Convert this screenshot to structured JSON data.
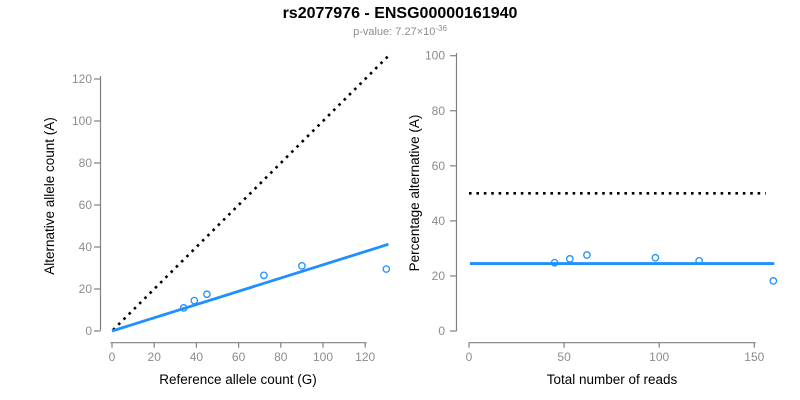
{
  "header": {
    "title": "rs2077976 - ENSG00000161940",
    "subtitle_prefix": "p-value: 7.27×10",
    "subtitle_exponent": "-36"
  },
  "colors": {
    "accent_blue": "#1E90FF",
    "line_black": "#000000",
    "axis_gray": "#808080",
    "tick_label_gray": "#8C8C8C",
    "subtitle_gray": "#8D8D8D",
    "title_black": "#000000"
  },
  "chart_data": [
    {
      "type": "scatter",
      "xlabel": "Reference allele count (G)",
      "ylabel": "Alternative allele count (A)",
      "xlim": [
        0,
        130
      ],
      "ylim": [
        0,
        133
      ],
      "xticks": [
        0,
        20,
        40,
        60,
        80,
        100,
        120
      ],
      "yticks": [
        0,
        20,
        40,
        60,
        80,
        100,
        120
      ],
      "points": [
        [
          34,
          11
        ],
        [
          39,
          14.5
        ],
        [
          45,
          17.5
        ],
        [
          72,
          26.5
        ],
        [
          90,
          31
        ],
        [
          130,
          29.5
        ]
      ],
      "lines": [
        {
          "name": "identity-line",
          "style": "dotted",
          "color": "black",
          "from": [
            0.5,
            0.5
          ],
          "to": [
            132,
            132
          ]
        },
        {
          "name": "fit-line",
          "style": "solid",
          "color": "blue",
          "from": [
            0,
            0
          ],
          "to": [
            131,
            41.3
          ]
        }
      ],
      "grid": false,
      "legend": null
    },
    {
      "type": "scatter",
      "xlabel": "Total number of reads",
      "ylabel": "Percentage alternative (A)",
      "xlim": [
        0,
        160
      ],
      "ylim": [
        0,
        100
      ],
      "xticks": [
        0,
        50,
        100,
        150
      ],
      "yticks": [
        0,
        20,
        40,
        60,
        80,
        100
      ],
      "points": [
        [
          45,
          24.8
        ],
        [
          53,
          26.2
        ],
        [
          62,
          27.6
        ],
        [
          98,
          26.6
        ],
        [
          121,
          25.5
        ],
        [
          160,
          18.2
        ]
      ],
      "lines": [
        {
          "name": "null-expectation-line",
          "style": "dotted",
          "color": "black",
          "from": [
            0,
            50
          ],
          "to": [
            156,
            50
          ]
        },
        {
          "name": "fit-line",
          "style": "solid",
          "color": "blue",
          "from": [
            0.5,
            24.5
          ],
          "to": [
            160.5,
            24.5
          ]
        }
      ],
      "grid": false,
      "legend": null
    }
  ]
}
